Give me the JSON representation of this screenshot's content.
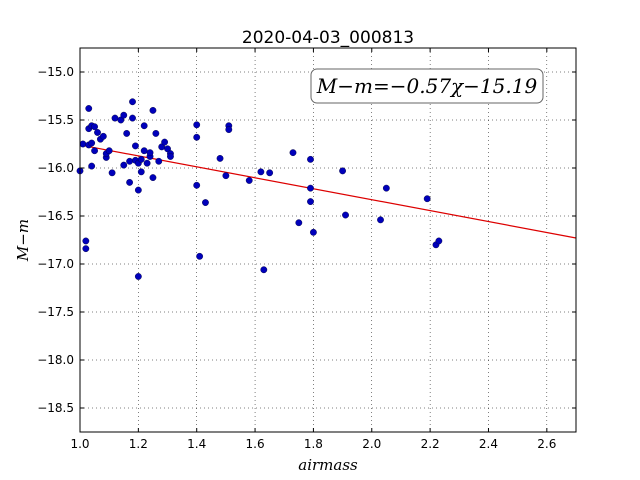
{
  "chart_data": {
    "type": "scatter",
    "title": "2020-04-03_000813",
    "xlabel": "airmass",
    "ylabel": "M−m",
    "xlim": [
      1.0,
      2.7
    ],
    "ylim": [
      -18.75,
      -14.75
    ],
    "ylim_inverted": true,
    "xticks": [
      1.0,
      1.2,
      1.4,
      1.6,
      1.8,
      2.0,
      2.2,
      2.4,
      2.6
    ],
    "yticks": [
      -15.0,
      -15.5,
      -16.0,
      -16.5,
      -17.0,
      -17.5,
      -18.0,
      -18.5
    ],
    "xtick_labels": [
      "1.0",
      "1.2",
      "1.4",
      "1.6",
      "1.8",
      "2.0",
      "2.2",
      "2.4",
      "2.6"
    ],
    "ytick_labels": [
      "−15.0",
      "−15.5",
      "−16.0",
      "−16.5",
      "−17.0",
      "−17.5",
      "−18.0",
      "−18.5"
    ],
    "grid": true,
    "annotation": "M−m=−0.57χ−15.19",
    "fit": {
      "slope": -0.57,
      "intercept": -15.19,
      "color": "#dd0000"
    },
    "marker_color": "#0000bb",
    "points": [
      [
        1.0,
        -16.03
      ],
      [
        1.01,
        -15.75
      ],
      [
        1.02,
        -16.84
      ],
      [
        1.02,
        -16.76
      ],
      [
        1.03,
        -15.38
      ],
      [
        1.03,
        -15.59
      ],
      [
        1.03,
        -15.76
      ],
      [
        1.04,
        -15.74
      ],
      [
        1.04,
        -15.98
      ],
      [
        1.04,
        -15.56
      ],
      [
        1.05,
        -15.57
      ],
      [
        1.05,
        -15.82
      ],
      [
        1.06,
        -15.63
      ],
      [
        1.07,
        -15.7
      ],
      [
        1.08,
        -15.67
      ],
      [
        1.09,
        -15.89
      ],
      [
        1.09,
        -15.85
      ],
      [
        1.1,
        -15.82
      ],
      [
        1.11,
        -16.05
      ],
      [
        1.12,
        -15.48
      ],
      [
        1.14,
        -15.5
      ],
      [
        1.15,
        -15.97
      ],
      [
        1.15,
        -15.45
      ],
      [
        1.16,
        -15.64
      ],
      [
        1.17,
        -15.93
      ],
      [
        1.17,
        -16.15
      ],
      [
        1.18,
        -15.31
      ],
      [
        1.18,
        -15.48
      ],
      [
        1.19,
        -15.92
      ],
      [
        1.19,
        -15.77
      ],
      [
        1.2,
        -15.95
      ],
      [
        1.2,
        -16.23
      ],
      [
        1.21,
        -15.91
      ],
      [
        1.21,
        -16.04
      ],
      [
        1.22,
        -15.82
      ],
      [
        1.22,
        -15.56
      ],
      [
        1.23,
        -15.95
      ],
      [
        1.24,
        -15.88
      ],
      [
        1.24,
        -15.84
      ],
      [
        1.25,
        -15.4
      ],
      [
        1.25,
        -16.1
      ],
      [
        1.26,
        -15.64
      ],
      [
        1.27,
        -15.93
      ],
      [
        1.28,
        -15.78
      ],
      [
        1.29,
        -15.73
      ],
      [
        1.3,
        -15.8
      ],
      [
        1.31,
        -15.85
      ],
      [
        1.31,
        -15.88
      ],
      [
        1.2,
        -17.13
      ],
      [
        1.4,
        -15.55
      ],
      [
        1.4,
        -16.18
      ],
      [
        1.4,
        -15.68
      ],
      [
        1.41,
        -16.92
      ],
      [
        1.43,
        -16.36
      ],
      [
        1.48,
        -15.9
      ],
      [
        1.5,
        -16.08
      ],
      [
        1.51,
        -15.56
      ],
      [
        1.51,
        -15.6
      ],
      [
        1.58,
        -16.13
      ],
      [
        1.62,
        -16.04
      ],
      [
        1.63,
        -17.06
      ],
      [
        1.65,
        -16.05
      ],
      [
        1.73,
        -15.84
      ],
      [
        1.75,
        -16.57
      ],
      [
        1.79,
        -16.21
      ],
      [
        1.79,
        -15.91
      ],
      [
        1.79,
        -16.35
      ],
      [
        1.8,
        -16.67
      ],
      [
        1.9,
        -16.03
      ],
      [
        1.91,
        -16.49
      ],
      [
        2.03,
        -16.54
      ],
      [
        2.05,
        -16.21
      ],
      [
        2.19,
        -16.32
      ],
      [
        2.22,
        -16.8
      ],
      [
        2.23,
        -16.76
      ]
    ]
  }
}
